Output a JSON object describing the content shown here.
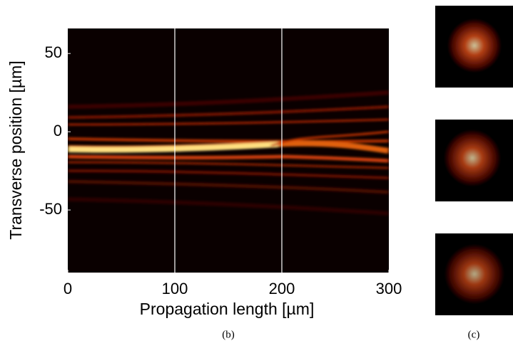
{
  "chart_data": {
    "type": "heatmap",
    "xlabel": "Propagation length [µm]",
    "ylabel": "Transverse position [µm]",
    "xlim": [
      0,
      300
    ],
    "xticks": [
      0,
      100,
      200,
      300
    ],
    "ylim": [
      -90,
      66
    ],
    "yticks": [
      50,
      0,
      -50
    ],
    "vlines": [
      100,
      200
    ],
    "vline_color": "#ffffff",
    "caption": "(b)"
  },
  "side_panel": {
    "caption": "(c)"
  }
}
